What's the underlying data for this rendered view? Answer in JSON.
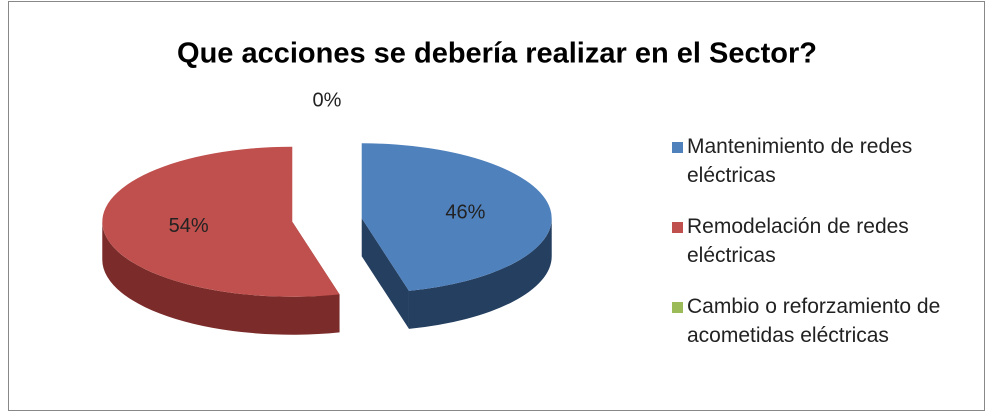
{
  "chart_data": {
    "type": "pie3d",
    "title": "Que acciones se debería realizar en el Sector?",
    "categories": [
      "Mantenimiento de redes eléctricas",
      "Remodelación de redes eléctricas",
      "Cambio o reforzamiento de acometidas eléctricas"
    ],
    "values": [
      46,
      54,
      0
    ],
    "value_labels": [
      "46%",
      "54%",
      "0%"
    ],
    "colors": [
      "#4f81bd",
      "#c0504d",
      "#9bbb59"
    ],
    "side_colors": [
      "#243f60",
      "#7b2c2a",
      "#5f7530"
    ],
    "legend": "right"
  }
}
